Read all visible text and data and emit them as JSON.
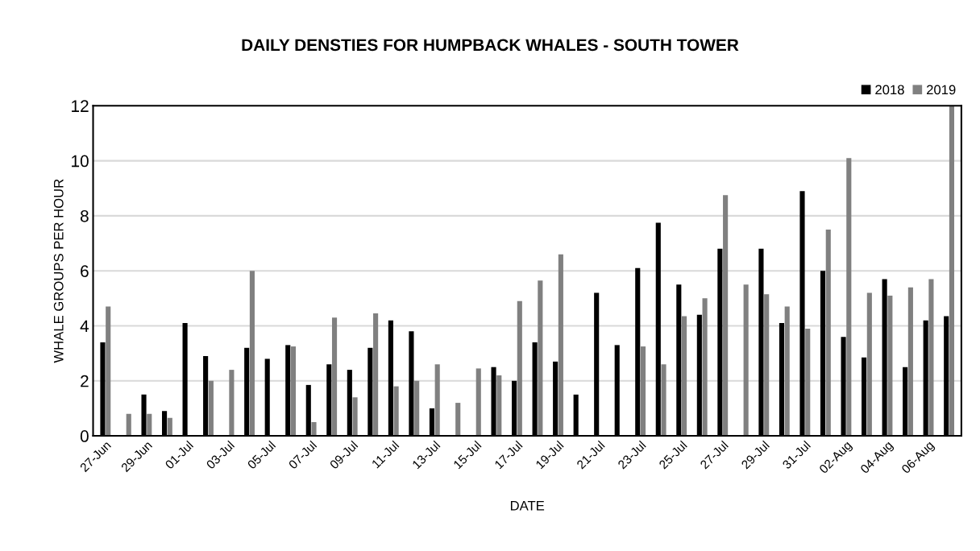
{
  "chart_data": {
    "type": "bar",
    "title": "DAILY DENSTIES FOR HUMPBACK WHALES - SOUTH TOWER",
    "xlabel": "DATE",
    "ylabel": "WHALE GROUPS PER HOUR",
    "categories": [
      "27-Jun",
      null,
      "29-Jun",
      null,
      "01-Jul",
      null,
      "03-Jul",
      null,
      "05-Jul",
      null,
      "07-Jul",
      null,
      "09-Jul",
      null,
      "11-Jul",
      null,
      "13-Jul",
      null,
      "15-Jul",
      null,
      "17-Jul",
      null,
      "19-Jul",
      null,
      "21-Jul",
      null,
      "23-Jul",
      null,
      "25-Jul",
      null,
      "27-Jul",
      null,
      "29-Jul",
      null,
      "31-Jul",
      null,
      "02-Aug",
      null,
      "04-Aug",
      null,
      "06-Aug",
      null
    ],
    "series": [
      {
        "name": "2018",
        "color": "#000000",
        "values": [
          3.4,
          null,
          1.5,
          0.9,
          4.1,
          2.9,
          null,
          3.2,
          2.8,
          3.3,
          1.85,
          2.6,
          2.4,
          3.2,
          4.2,
          3.8,
          1.0,
          null,
          null,
          2.5,
          2.0,
          3.4,
          2.7,
          1.5,
          5.2,
          3.3,
          6.1,
          7.75,
          5.5,
          4.4,
          6.8,
          null,
          6.8,
          4.1,
          8.9,
          6.0,
          3.6,
          2.85,
          5.7,
          2.5,
          4.2,
          4.35
        ]
      },
      {
        "name": "2019",
        "color": "#808080",
        "values": [
          4.7,
          0.8,
          0.8,
          0.65,
          null,
          2.0,
          2.4,
          6.0,
          null,
          3.25,
          0.5,
          4.3,
          1.4,
          4.45,
          1.8,
          2.0,
          2.6,
          1.2,
          2.45,
          2.2,
          4.9,
          5.65,
          6.6,
          null,
          null,
          null,
          3.25,
          2.6,
          4.35,
          5.0,
          8.75,
          5.5,
          5.15,
          4.7,
          3.9,
          7.5,
          10.1,
          5.2,
          5.1,
          5.4,
          5.7,
          12.0
        ]
      }
    ],
    "ylim": [
      0,
      12
    ],
    "yticks": [
      0,
      2,
      4,
      6,
      8,
      10,
      12
    ],
    "grid": "y",
    "legend": "top right"
  }
}
